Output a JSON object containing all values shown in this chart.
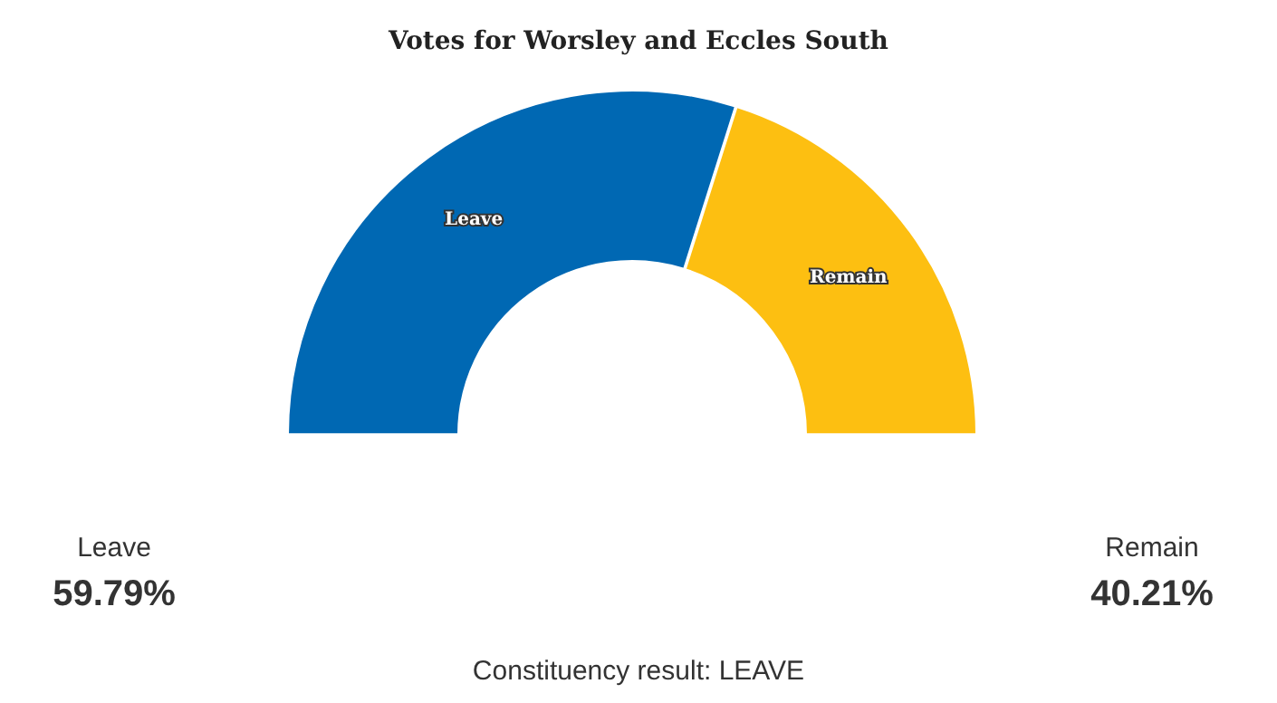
{
  "chart_data": {
    "type": "donut",
    "title": "Votes for Worsley and Eccles South",
    "categories": [
      "Leave",
      "Remain"
    ],
    "values": [
      59.79,
      40.21
    ],
    "colors": [
      "#0068b3",
      "#fdbf11"
    ],
    "annotations": [
      "Leave",
      "59.79%",
      "Remain",
      "40.21%",
      "Constituency result: LEAVE"
    ]
  }
}
